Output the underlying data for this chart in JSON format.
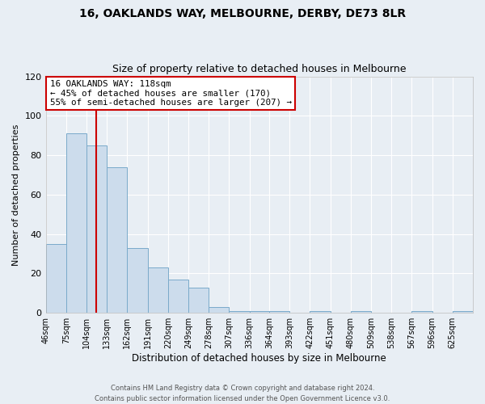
{
  "title": "16, OAKLANDS WAY, MELBOURNE, DERBY, DE73 8LR",
  "subtitle": "Size of property relative to detached houses in Melbourne",
  "xlabel": "Distribution of detached houses by size in Melbourne",
  "ylabel": "Number of detached properties",
  "bar_color": "#ccdcec",
  "bar_edge_color": "#7aaaca",
  "background_color": "#e8eef4",
  "plot_bg_color": "#e8eef4",
  "grid_color": "#ffffff",
  "categories": [
    "46sqm",
    "75sqm",
    "104sqm",
    "133sqm",
    "162sqm",
    "191sqm",
    "220sqm",
    "249sqm",
    "278sqm",
    "307sqm",
    "336sqm",
    "364sqm",
    "393sqm",
    "422sqm",
    "451sqm",
    "480sqm",
    "509sqm",
    "538sqm",
    "567sqm",
    "596sqm",
    "625sqm"
  ],
  "bin_edges": [
    46,
    75,
    104,
    133,
    162,
    191,
    220,
    249,
    278,
    307,
    336,
    364,
    393,
    422,
    451,
    480,
    509,
    538,
    567,
    596,
    625,
    654
  ],
  "values": [
    35,
    91,
    85,
    74,
    33,
    23,
    17,
    13,
    3,
    1,
    1,
    1,
    0,
    1,
    0,
    1,
    0,
    0,
    1,
    0,
    1
  ],
  "ylim": [
    0,
    120
  ],
  "yticks": [
    0,
    20,
    40,
    60,
    80,
    100,
    120
  ],
  "red_line_x": 118,
  "annotation_line1": "16 OAKLANDS WAY: 118sqm",
  "annotation_line2": "← 45% of detached houses are smaller (170)",
  "annotation_line3": "55% of semi-detached houses are larger (207) →",
  "annotation_box_color": "#ffffff",
  "annotation_box_edge_color": "#cc0000",
  "footer_line1": "Contains HM Land Registry data © Crown copyright and database right 2024.",
  "footer_line2": "Contains public sector information licensed under the Open Government Licence v3.0."
}
